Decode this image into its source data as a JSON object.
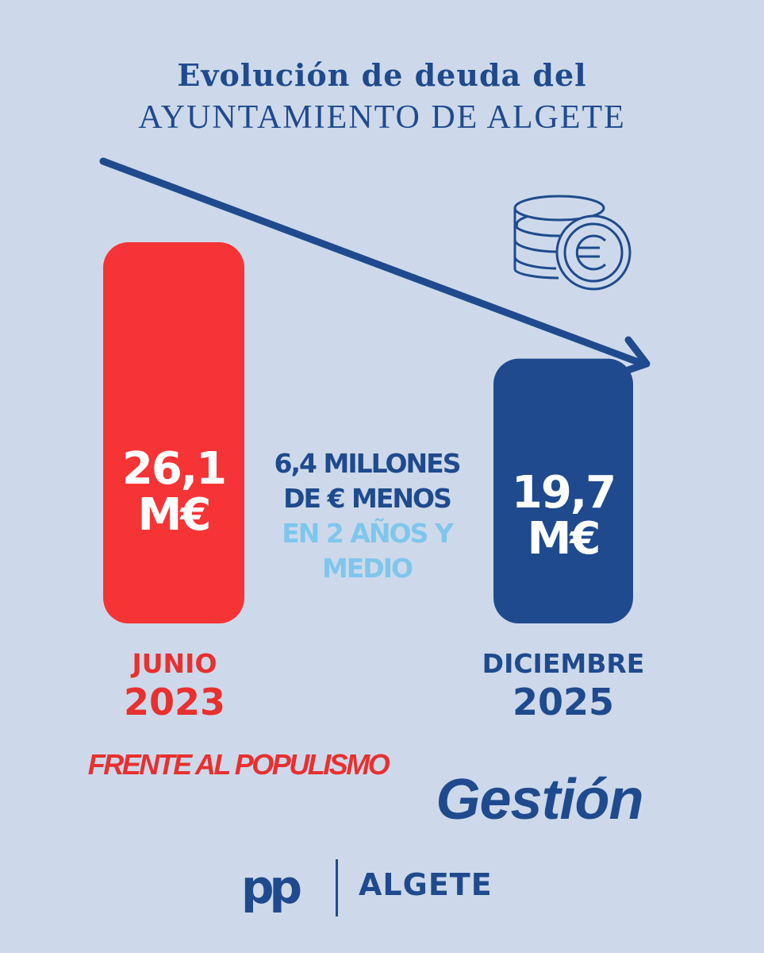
{
  "title_line1": "Evolución de deuda del",
  "title_line2": "AYUNTAMIENTO DE ALGETE",
  "colors": {
    "background": "#cdd9ea",
    "red": "#f63436",
    "blue": "#1f4a8d",
    "light_blue": "#7fc6ec"
  },
  "chart_data": {
    "type": "bar",
    "categories": [
      "JUNIO 2023",
      "DICIEMBRE 2025"
    ],
    "values": [
      26.1,
      19.7
    ],
    "value_labels": [
      "26,1",
      "19,7"
    ],
    "unit": "M€",
    "bar_colors": [
      "#f63436",
      "#1f4a8d"
    ]
  },
  "bars": [
    {
      "value_text": "26,1",
      "unit": "M€",
      "month": "JUNIO",
      "year": "2023"
    },
    {
      "value_text": "19,7",
      "unit": "M€",
      "month": "DICIEMBRE",
      "year": "2025"
    }
  ],
  "difference": {
    "line1": "6,4 MILLONES",
    "line2": "DE € MENOS",
    "line3": "EN 2 AÑOS Y",
    "line4": "MEDIO"
  },
  "icons": [
    "trend-down-arrow-icon",
    "euro-coins-icon"
  ],
  "slogan_left": "FRENTE AL POPULISMO",
  "slogan_right": "Gestión",
  "footer": {
    "logo": "pp",
    "place": "ALGETE"
  }
}
